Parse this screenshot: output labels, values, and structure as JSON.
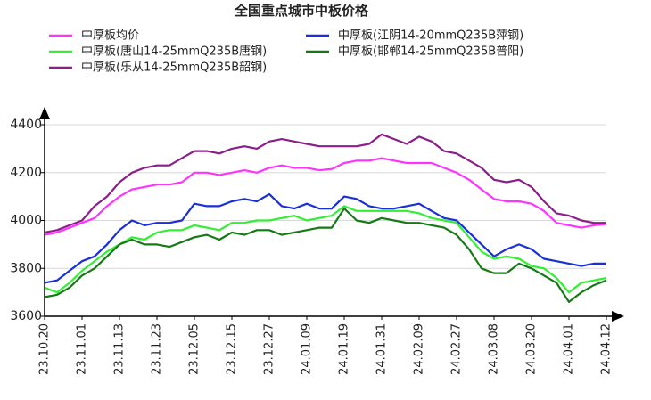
{
  "chart_data": {
    "type": "line",
    "title": "全国重点城市中板价格",
    "categories": [
      "23.10.20",
      null,
      null,
      "23.11.01",
      null,
      null,
      "23.11.13",
      null,
      null,
      "23.11.23",
      null,
      null,
      "23.12.05",
      null,
      null,
      "23.12.15",
      null,
      null,
      "23.12.27",
      null,
      null,
      "24.01.09",
      null,
      null,
      "24.01.19",
      null,
      null,
      "24.01.31",
      null,
      null,
      "24.02.09",
      null,
      null,
      "24.02.27",
      null,
      null,
      "24.03.08",
      null,
      null,
      "24.03.20",
      null,
      null,
      "24.04.01",
      null,
      null,
      "24.04.12"
    ],
    "series": [
      {
        "name": "中厚板均价",
        "color": "#ff33ff",
        "values": [
          3940,
          3950,
          3970,
          3990,
          4010,
          4060,
          4100,
          4130,
          4140,
          4150,
          4150,
          4160,
          4200,
          4200,
          4190,
          4200,
          4210,
          4200,
          4220,
          4230,
          4220,
          4220,
          4210,
          4215,
          4240,
          4250,
          4250,
          4260,
          4250,
          4240,
          4240,
          4240,
          4220,
          4200,
          4170,
          4130,
          4090,
          4080,
          4080,
          4070,
          4040,
          3990,
          3980,
          3970,
          3980,
          3985
        ]
      },
      {
        "name": "中厚板(江阴14-20mmQ235B萍钢)",
        "color": "#1a2fd9",
        "values": [
          3740,
          3750,
          3790,
          3830,
          3850,
          3900,
          3960,
          4000,
          3980,
          3990,
          3990,
          4000,
          4070,
          4060,
          4060,
          4080,
          4090,
          4080,
          4110,
          4060,
          4050,
          4070,
          4050,
          4050,
          4100,
          4090,
          4060,
          4050,
          4050,
          4060,
          4070,
          4040,
          4010,
          4000,
          3950,
          3900,
          3850,
          3880,
          3900,
          3880,
          3840,
          3830,
          3820,
          3810,
          3820,
          3820
        ]
      },
      {
        "name": "中厚板(唐山14-25mmQ235B唐钢)",
        "color": "#33ee33",
        "values": [
          3720,
          3700,
          3740,
          3790,
          3830,
          3870,
          3900,
          3930,
          3920,
          3950,
          3960,
          3960,
          3980,
          3970,
          3960,
          3990,
          3990,
          4000,
          4000,
          4010,
          4020,
          4000,
          4010,
          4020,
          4060,
          4040,
          4040,
          4040,
          4040,
          4040,
          4030,
          4010,
          4000,
          3990,
          3930,
          3870,
          3840,
          3850,
          3840,
          3810,
          3800,
          3760,
          3700,
          3740,
          3750,
          3760
        ]
      },
      {
        "name": "中厚板(邯郸14-25mmQ235B普阳)",
        "color": "#157a15",
        "values": [
          3680,
          3690,
          3720,
          3770,
          3800,
          3850,
          3900,
          3920,
          3900,
          3900,
          3890,
          3910,
          3930,
          3940,
          3920,
          3950,
          3940,
          3960,
          3960,
          3940,
          3950,
          3960,
          3970,
          3970,
          4050,
          4000,
          3990,
          4010,
          4000,
          3990,
          3990,
          3980,
          3970,
          3940,
          3880,
          3800,
          3780,
          3780,
          3820,
          3800,
          3770,
          3740,
          3660,
          3700,
          3730,
          3750
        ]
      },
      {
        "name": "中厚板(乐从14-25mmQ235B韶钢)",
        "color": "#8a1f8a",
        "values": [
          3950,
          3960,
          3980,
          4000,
          4060,
          4100,
          4160,
          4200,
          4220,
          4230,
          4230,
          4260,
          4290,
          4290,
          4280,
          4300,
          4310,
          4300,
          4330,
          4340,
          4330,
          4320,
          4310,
          4310,
          4310,
          4310,
          4320,
          4360,
          4340,
          4320,
          4350,
          4330,
          4290,
          4280,
          4250,
          4220,
          4170,
          4160,
          4170,
          4140,
          4080,
          4030,
          4020,
          4000,
          3990,
          3990
        ]
      }
    ],
    "ylim": [
      3600,
      4400
    ],
    "yticks": [
      3600,
      3800,
      4000,
      4200,
      4400
    ],
    "grid": true
  }
}
